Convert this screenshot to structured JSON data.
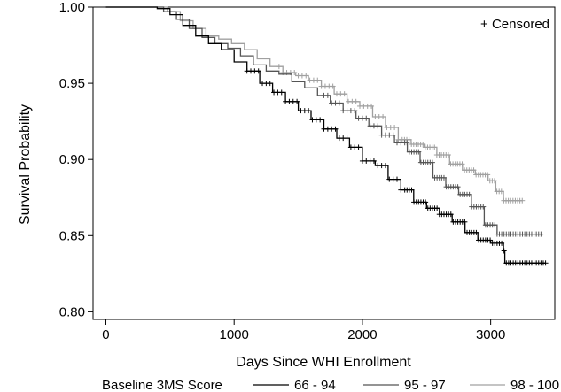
{
  "chart_data": {
    "type": "line",
    "title": "",
    "xlabel": "Days Since WHI Enrollment",
    "ylabel": "Survival Probability",
    "xlim": [
      -100,
      3500
    ],
    "ylim": [
      0.795,
      1.0
    ],
    "x_ticks": [
      {
        "value": 0,
        "label": "0"
      },
      {
        "value": 1000,
        "label": "1000"
      },
      {
        "value": 2000,
        "label": "2000"
      },
      {
        "value": 3000,
        "label": "3000"
      }
    ],
    "y_ticks": [
      {
        "value": 0.8,
        "label": "0.80"
      },
      {
        "value": 0.85,
        "label": "0.85"
      },
      {
        "value": 0.9,
        "label": "0.90"
      },
      {
        "value": 0.95,
        "label": "0.95"
      },
      {
        "value": 1.0,
        "label": "1.00"
      }
    ],
    "grid": false,
    "censor_note": "+ Censored",
    "legend": {
      "title": "Baseline 3MS Score",
      "placement": "bottom"
    },
    "series": [
      {
        "name": "66 - 94",
        "color": "#000000",
        "points": [
          [
            0,
            1.0
          ],
          [
            300,
            1.0
          ],
          [
            400,
            0.999
          ],
          [
            500,
            0.995
          ],
          [
            600,
            0.988
          ],
          [
            700,
            0.981
          ],
          [
            800,
            0.976
          ],
          [
            900,
            0.972
          ],
          [
            1000,
            0.964
          ],
          [
            1100,
            0.958
          ],
          [
            1200,
            0.95
          ],
          [
            1300,
            0.944
          ],
          [
            1400,
            0.938
          ],
          [
            1500,
            0.932
          ],
          [
            1600,
            0.926
          ],
          [
            1700,
            0.92
          ],
          [
            1800,
            0.914
          ],
          [
            1900,
            0.908
          ],
          [
            2000,
            0.899
          ],
          [
            2100,
            0.896
          ],
          [
            2200,
            0.887
          ],
          [
            2300,
            0.88
          ],
          [
            2400,
            0.872
          ],
          [
            2500,
            0.868
          ],
          [
            2600,
            0.864
          ],
          [
            2700,
            0.859
          ],
          [
            2800,
            0.852
          ],
          [
            2900,
            0.847
          ],
          [
            3000,
            0.845
          ],
          [
            3100,
            0.84
          ],
          [
            3110,
            0.832
          ],
          [
            3430,
            0.832
          ]
        ],
        "censor_from": 1100
      },
      {
        "name": "95 - 97",
        "color": "#555555",
        "points": [
          [
            0,
            1.0
          ],
          [
            350,
            1.0
          ],
          [
            450,
            0.997
          ],
          [
            550,
            0.992
          ],
          [
            650,
            0.986
          ],
          [
            750,
            0.98
          ],
          [
            850,
            0.976
          ],
          [
            950,
            0.973
          ],
          [
            1050,
            0.968
          ],
          [
            1150,
            0.962
          ],
          [
            1250,
            0.958
          ],
          [
            1350,
            0.956
          ],
          [
            1450,
            0.951
          ],
          [
            1550,
            0.947
          ],
          [
            1650,
            0.942
          ],
          [
            1750,
            0.937
          ],
          [
            1850,
            0.932
          ],
          [
            1950,
            0.927
          ],
          [
            2050,
            0.922
          ],
          [
            2150,
            0.916
          ],
          [
            2250,
            0.911
          ],
          [
            2350,
            0.905
          ],
          [
            2450,
            0.898
          ],
          [
            2550,
            0.888
          ],
          [
            2650,
            0.882
          ],
          [
            2750,
            0.877
          ],
          [
            2850,
            0.869
          ],
          [
            2950,
            0.857
          ],
          [
            3050,
            0.851
          ],
          [
            3400,
            0.85
          ]
        ],
        "censor_from": 1700
      },
      {
        "name": "98 - 100",
        "color": "#a0a0a0",
        "points": [
          [
            0,
            1.0
          ],
          [
            380,
            1.0
          ],
          [
            480,
            0.997
          ],
          [
            580,
            0.991
          ],
          [
            680,
            0.986
          ],
          [
            780,
            0.981
          ],
          [
            880,
            0.979
          ],
          [
            980,
            0.976
          ],
          [
            1080,
            0.972
          ],
          [
            1180,
            0.966
          ],
          [
            1280,
            0.961
          ],
          [
            1380,
            0.957
          ],
          [
            1480,
            0.955
          ],
          [
            1580,
            0.952
          ],
          [
            1680,
            0.948
          ],
          [
            1780,
            0.943
          ],
          [
            1880,
            0.938
          ],
          [
            1980,
            0.935
          ],
          [
            2080,
            0.928
          ],
          [
            2180,
            0.921
          ],
          [
            2280,
            0.913
          ],
          [
            2380,
            0.91
          ],
          [
            2480,
            0.908
          ],
          [
            2580,
            0.903
          ],
          [
            2680,
            0.897
          ],
          [
            2780,
            0.893
          ],
          [
            2880,
            0.89
          ],
          [
            2980,
            0.886
          ],
          [
            3040,
            0.879
          ],
          [
            3100,
            0.873
          ],
          [
            3250,
            0.873
          ]
        ],
        "censor_from": 1350
      }
    ]
  }
}
